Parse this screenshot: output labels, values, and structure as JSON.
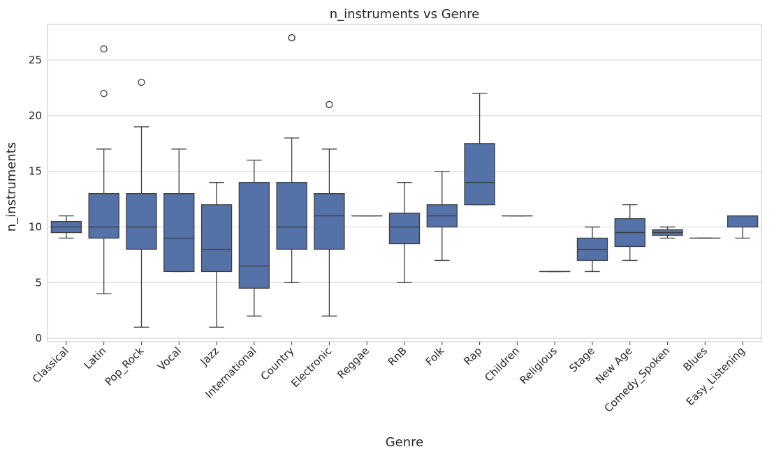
{
  "chart_data": {
    "type": "box",
    "title": "n_instruments vs Genre",
    "xlabel": "Genre",
    "ylabel": "n_instruments",
    "ylim": [
      -0.3,
      28.2
    ],
    "yticks": [
      0,
      5,
      10,
      15,
      20,
      25
    ],
    "grid": true,
    "box_color": "#5471a8",
    "categories": [
      "Classical",
      "Latin",
      "Pop_Rock",
      "Vocal",
      "Jazz",
      "International",
      "Country",
      "Electronic",
      "Reggae",
      "RnB",
      "Folk",
      "Rap",
      "Children",
      "Religious",
      "Stage",
      "New Age",
      "Comedy_Spoken",
      "Blues",
      "Easy_Listening"
    ],
    "boxes": [
      {
        "genre": "Classical",
        "q1": 9.5,
        "median": 10,
        "q3": 10.5,
        "whislo": 9,
        "whishi": 11,
        "fliers": []
      },
      {
        "genre": "Latin",
        "q1": 9,
        "median": 10,
        "q3": 13,
        "whislo": 4,
        "whishi": 17,
        "fliers": [
          22,
          26
        ]
      },
      {
        "genre": "Pop_Rock",
        "q1": 8,
        "median": 10,
        "q3": 13,
        "whislo": 1,
        "whishi": 19,
        "fliers": [
          23
        ]
      },
      {
        "genre": "Vocal",
        "q1": 6,
        "median": 9,
        "q3": 13,
        "whislo": 6,
        "whishi": 17,
        "fliers": []
      },
      {
        "genre": "Jazz",
        "q1": 6,
        "median": 8,
        "q3": 12,
        "whislo": 1,
        "whishi": 14,
        "fliers": []
      },
      {
        "genre": "International",
        "q1": 4.5,
        "median": 6.5,
        "q3": 14,
        "whislo": 2,
        "whishi": 16,
        "fliers": []
      },
      {
        "genre": "Country",
        "q1": 8,
        "median": 10,
        "q3": 14,
        "whislo": 5,
        "whishi": 18,
        "fliers": [
          27,
          27
        ]
      },
      {
        "genre": "Electronic",
        "q1": 8,
        "median": 11,
        "q3": 13,
        "whislo": 2,
        "whishi": 17,
        "fliers": [
          21
        ]
      },
      {
        "genre": "Reggae",
        "q1": 11,
        "median": 11,
        "q3": 11,
        "whislo": 11,
        "whishi": 11,
        "fliers": []
      },
      {
        "genre": "RnB",
        "q1": 8.5,
        "median": 10,
        "q3": 11.25,
        "whislo": 5,
        "whishi": 14,
        "fliers": []
      },
      {
        "genre": "Folk",
        "q1": 10,
        "median": 11,
        "q3": 12,
        "whislo": 7,
        "whishi": 15,
        "fliers": []
      },
      {
        "genre": "Rap",
        "q1": 12,
        "median": 14,
        "q3": 17.5,
        "whislo": 12,
        "whishi": 22,
        "fliers": []
      },
      {
        "genre": "Children",
        "q1": 11,
        "median": 11,
        "q3": 11,
        "whislo": 11,
        "whishi": 11,
        "fliers": []
      },
      {
        "genre": "Religious",
        "q1": 6,
        "median": 6,
        "q3": 6,
        "whislo": 6,
        "whishi": 6,
        "fliers": []
      },
      {
        "genre": "Stage",
        "q1": 7,
        "median": 8,
        "q3": 9,
        "whislo": 6,
        "whishi": 10,
        "fliers": []
      },
      {
        "genre": "New Age",
        "q1": 8.25,
        "median": 9.5,
        "q3": 10.75,
        "whislo": 7,
        "whishi": 12,
        "fliers": []
      },
      {
        "genre": "Comedy_Spoken",
        "q1": 9.25,
        "median": 9.5,
        "q3": 9.75,
        "whislo": 9,
        "whishi": 10,
        "fliers": []
      },
      {
        "genre": "Blues",
        "q1": 9,
        "median": 9,
        "q3": 9,
        "whislo": 9,
        "whishi": 9,
        "fliers": []
      },
      {
        "genre": "Easy_Listening",
        "q1": 10,
        "median": 11,
        "q3": 11,
        "whislo": 9,
        "whishi": 11,
        "fliers": []
      }
    ]
  }
}
